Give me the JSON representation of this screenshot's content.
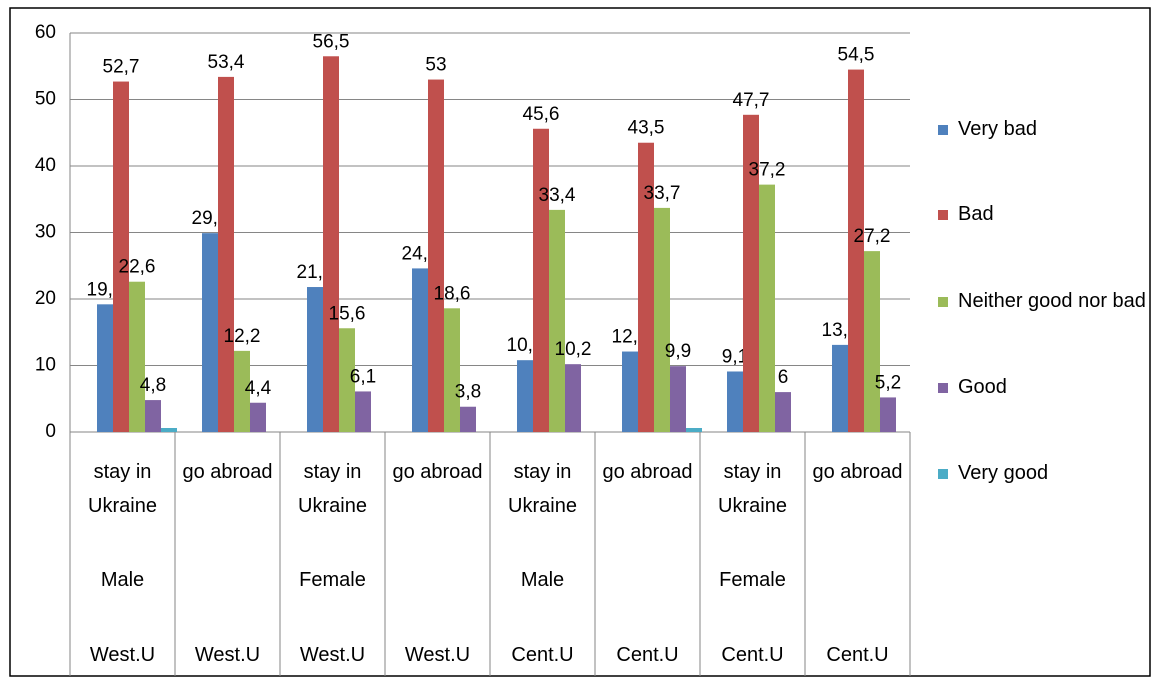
{
  "chart_data": {
    "type": "bar",
    "categories": [
      "stay in Ukraine",
      "go abroad",
      "stay in Ukraine",
      "go abroad",
      "stay in Ukraine",
      "go abroad",
      "stay in Ukraine",
      "go abroad"
    ],
    "gender": [
      "Male",
      null,
      "Female",
      null,
      "Male",
      null,
      "Female",
      null
    ],
    "region": [
      "West.U",
      "West.U",
      "West.U",
      "West.U",
      "Cent.U",
      "Cent.U",
      "Cent.U",
      "Cent.U"
    ],
    "series": [
      {
        "name": "Very bad",
        "color": "#4f81bd",
        "values": [
          19.2,
          29.9,
          21.8,
          24.6,
          10.8,
          12.1,
          9.1,
          13.1
        ],
        "value_labels": [
          "19,2",
          "29,9",
          "21,8",
          "24,6",
          "10,8",
          "12,1",
          "9,1",
          "13,1"
        ]
      },
      {
        "name": "Bad",
        "color": "#c0504d",
        "values": [
          52.7,
          53.4,
          56.5,
          53,
          45.6,
          43.5,
          47.7,
          54.5
        ],
        "value_labels": [
          "52,7",
          "53,4",
          "56,5",
          "53",
          "45,6",
          "43,5",
          "47,7",
          "54,5"
        ]
      },
      {
        "name": "Neither good nor bad",
        "color": "#9bbb59",
        "values": [
          22.6,
          12.2,
          15.6,
          18.6,
          33.4,
          33.7,
          37.2,
          27.2
        ],
        "value_labels": [
          "22,6",
          "12,2",
          "15,6",
          "18,6",
          "33,4",
          "33,7",
          "37,2",
          "27,2"
        ]
      },
      {
        "name": "Good",
        "color": "#8064a2",
        "values": [
          4.8,
          4.4,
          6.1,
          3.8,
          10.2,
          9.9,
          6,
          5.2
        ],
        "value_labels": [
          "4,8",
          "4,4",
          "6,1",
          "3,8",
          "10,2",
          "9,9",
          "6",
          "5,2"
        ]
      },
      {
        "name": "Very good",
        "color": "#4bacc6",
        "values": [
          0.6,
          null,
          null,
          null,
          null,
          0.6,
          null,
          null
        ]
      }
    ],
    "ylim": [
      0,
      60
    ],
    "yticks": [
      0,
      10,
      20,
      30,
      40,
      50,
      60
    ],
    "grid": true,
    "legend": "right"
  }
}
